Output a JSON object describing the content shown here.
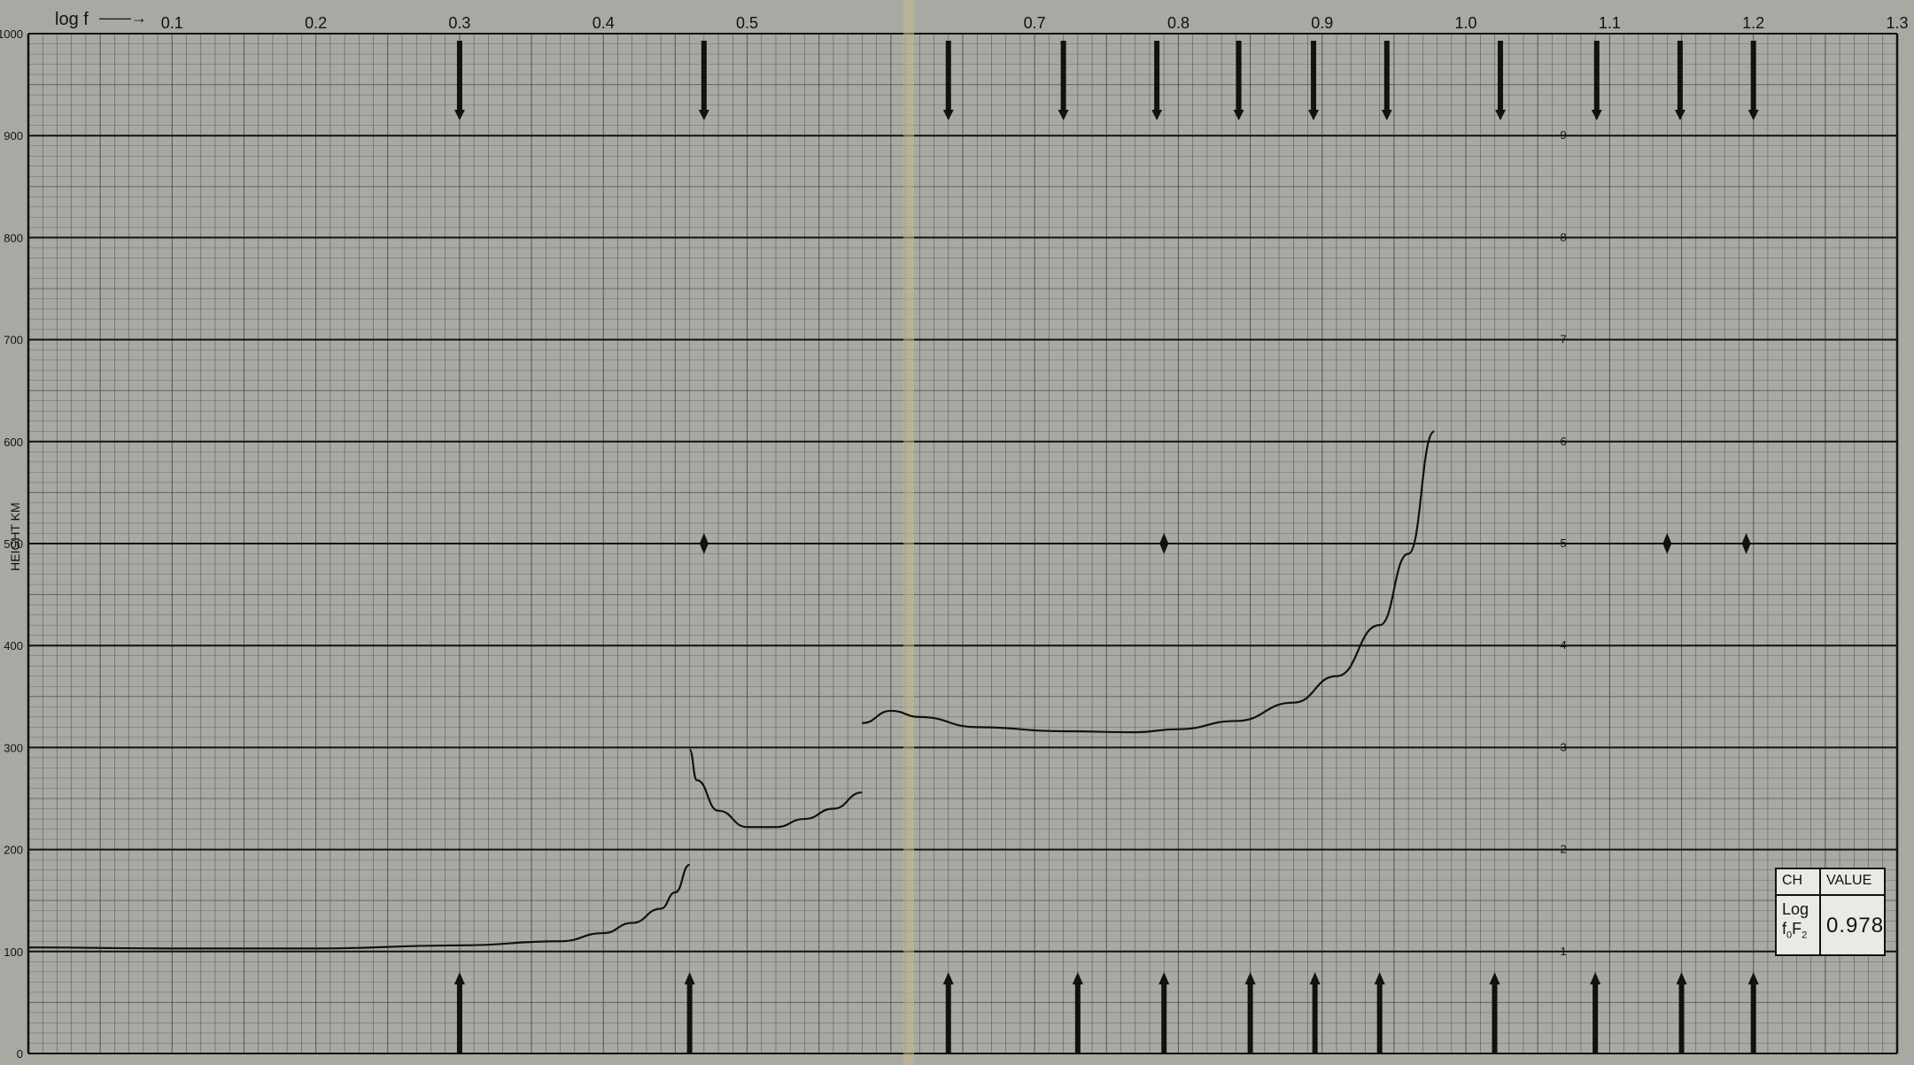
{
  "chart_data": {
    "type": "line",
    "title": "",
    "xlabel": "log f",
    "ylabel": "HEIGHT KM",
    "xlim": [
      0,
      1.3
    ],
    "ylim": [
      0,
      1000
    ],
    "x_ticks": [
      "0.1",
      "0.2",
      "0.3",
      "0.4",
      "0.5",
      "0.7",
      "0.8",
      "0.9",
      "1.0",
      "1.1",
      "1.2",
      "1.3"
    ],
    "y_ticks": [
      "0",
      "100",
      "200",
      "300",
      "400",
      "500",
      "600",
      "700",
      "800",
      "900",
      "1000"
    ],
    "right_scale_ticks": [
      "1",
      "2",
      "3",
      "4",
      "5",
      "6",
      "7",
      "8",
      "9"
    ],
    "grid": true,
    "series": [
      {
        "values_x": [
          0.0,
          0.1,
          0.2,
          0.3,
          0.37,
          0.4,
          0.42,
          0.44,
          0.45,
          0.46
        ],
        "values_y": [
          104,
          103,
          103,
          106,
          110,
          118,
          128,
          142,
          158,
          185
        ]
      },
      {
        "values_x": [
          0.46,
          0.465,
          0.48,
          0.5,
          0.52,
          0.54,
          0.56,
          0.58
        ],
        "values_y": [
          298,
          268,
          238,
          222,
          222,
          230,
          240,
          256
        ]
      },
      {
        "values_x": [
          0.58,
          0.6,
          0.62,
          0.66,
          0.72,
          0.77,
          0.8,
          0.84,
          0.88,
          0.91,
          0.94,
          0.96,
          0.978
        ],
        "values_y": [
          324,
          336,
          330,
          320,
          316,
          315,
          318,
          326,
          344,
          370,
          420,
          490,
          610
        ]
      }
    ]
  },
  "labels": {
    "axis_x_title": "log f",
    "arrow": "——→",
    "y_axis_title": "HEIGHT KM"
  },
  "table": {
    "col_ch": "CH",
    "col_value": "VALUE",
    "row_label_1": "Log",
    "row_label_2": "f",
    "row_label_sub1": "0",
    "row_label_f": "F",
    "row_label_sub2": "2",
    "row_value": "0.978"
  }
}
